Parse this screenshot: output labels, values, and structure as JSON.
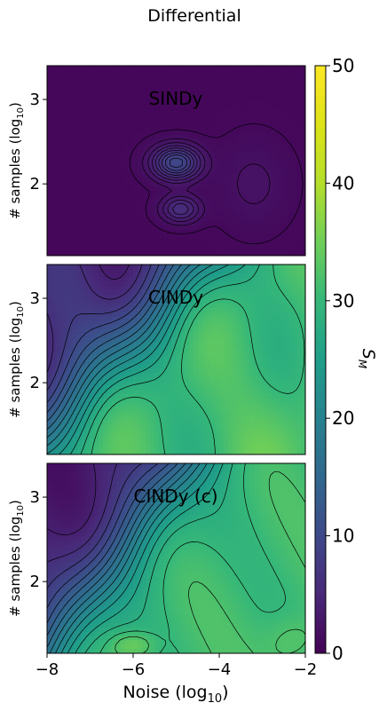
{
  "figure": {
    "suptitle": "Differential"
  },
  "colors": {
    "viridis_low": "#440154",
    "viridis_mid": "#21918c",
    "viridis_high": "#fde725",
    "contour_line": "#000000"
  },
  "chart_data": [
    {
      "type": "heatmap",
      "panel_label": "SINDy",
      "ylabel": "# samples (log",
      "ylabel_sub": "10",
      "ylabel_close": ")",
      "xlim": [
        -8,
        -2
      ],
      "ylim": [
        1.15,
        3.4
      ],
      "yticks": [
        2,
        3
      ],
      "yticklabels": [
        "2",
        "3"
      ],
      "colormap": "viridis",
      "description_values": "near 0 everywhere; local peak near noise -5, samples 2.25"
    },
    {
      "type": "heatmap",
      "panel_label": "CINDy",
      "ylabel": "# samples (log",
      "ylabel_sub": "10",
      "ylabel_close": ")",
      "xlim": [
        -8,
        -2
      ],
      "ylim": [
        1.15,
        3.4
      ],
      "yticks": [
        2,
        3
      ],
      "yticklabels": [
        "2",
        "3"
      ],
      "colormap": "viridis"
    },
    {
      "type": "heatmap",
      "panel_label": "CINDy (c)",
      "ylabel": "# samples (log",
      "ylabel_sub": "10",
      "ylabel_close": ")",
      "xlabel": "Noise (log",
      "xlabel_sub": "10",
      "xlabel_close": ")",
      "xlim": [
        -8,
        -2
      ],
      "ylim": [
        1.15,
        3.4
      ],
      "xticks": [
        -8,
        -6,
        -4,
        -2
      ],
      "xticklabels": [
        "−8",
        "−6",
        "−4",
        "−2"
      ],
      "yticks": [
        2,
        3
      ],
      "yticklabels": [
        "2",
        "3"
      ],
      "colormap": "viridis"
    }
  ],
  "colorbar": {
    "label": "S",
    "label_sub": "M",
    "range": [
      0,
      50
    ],
    "ticks": [
      0,
      10,
      20,
      30,
      40,
      50
    ],
    "ticklabels": [
      "0",
      "10",
      "20",
      "30",
      "40",
      "50"
    ]
  }
}
